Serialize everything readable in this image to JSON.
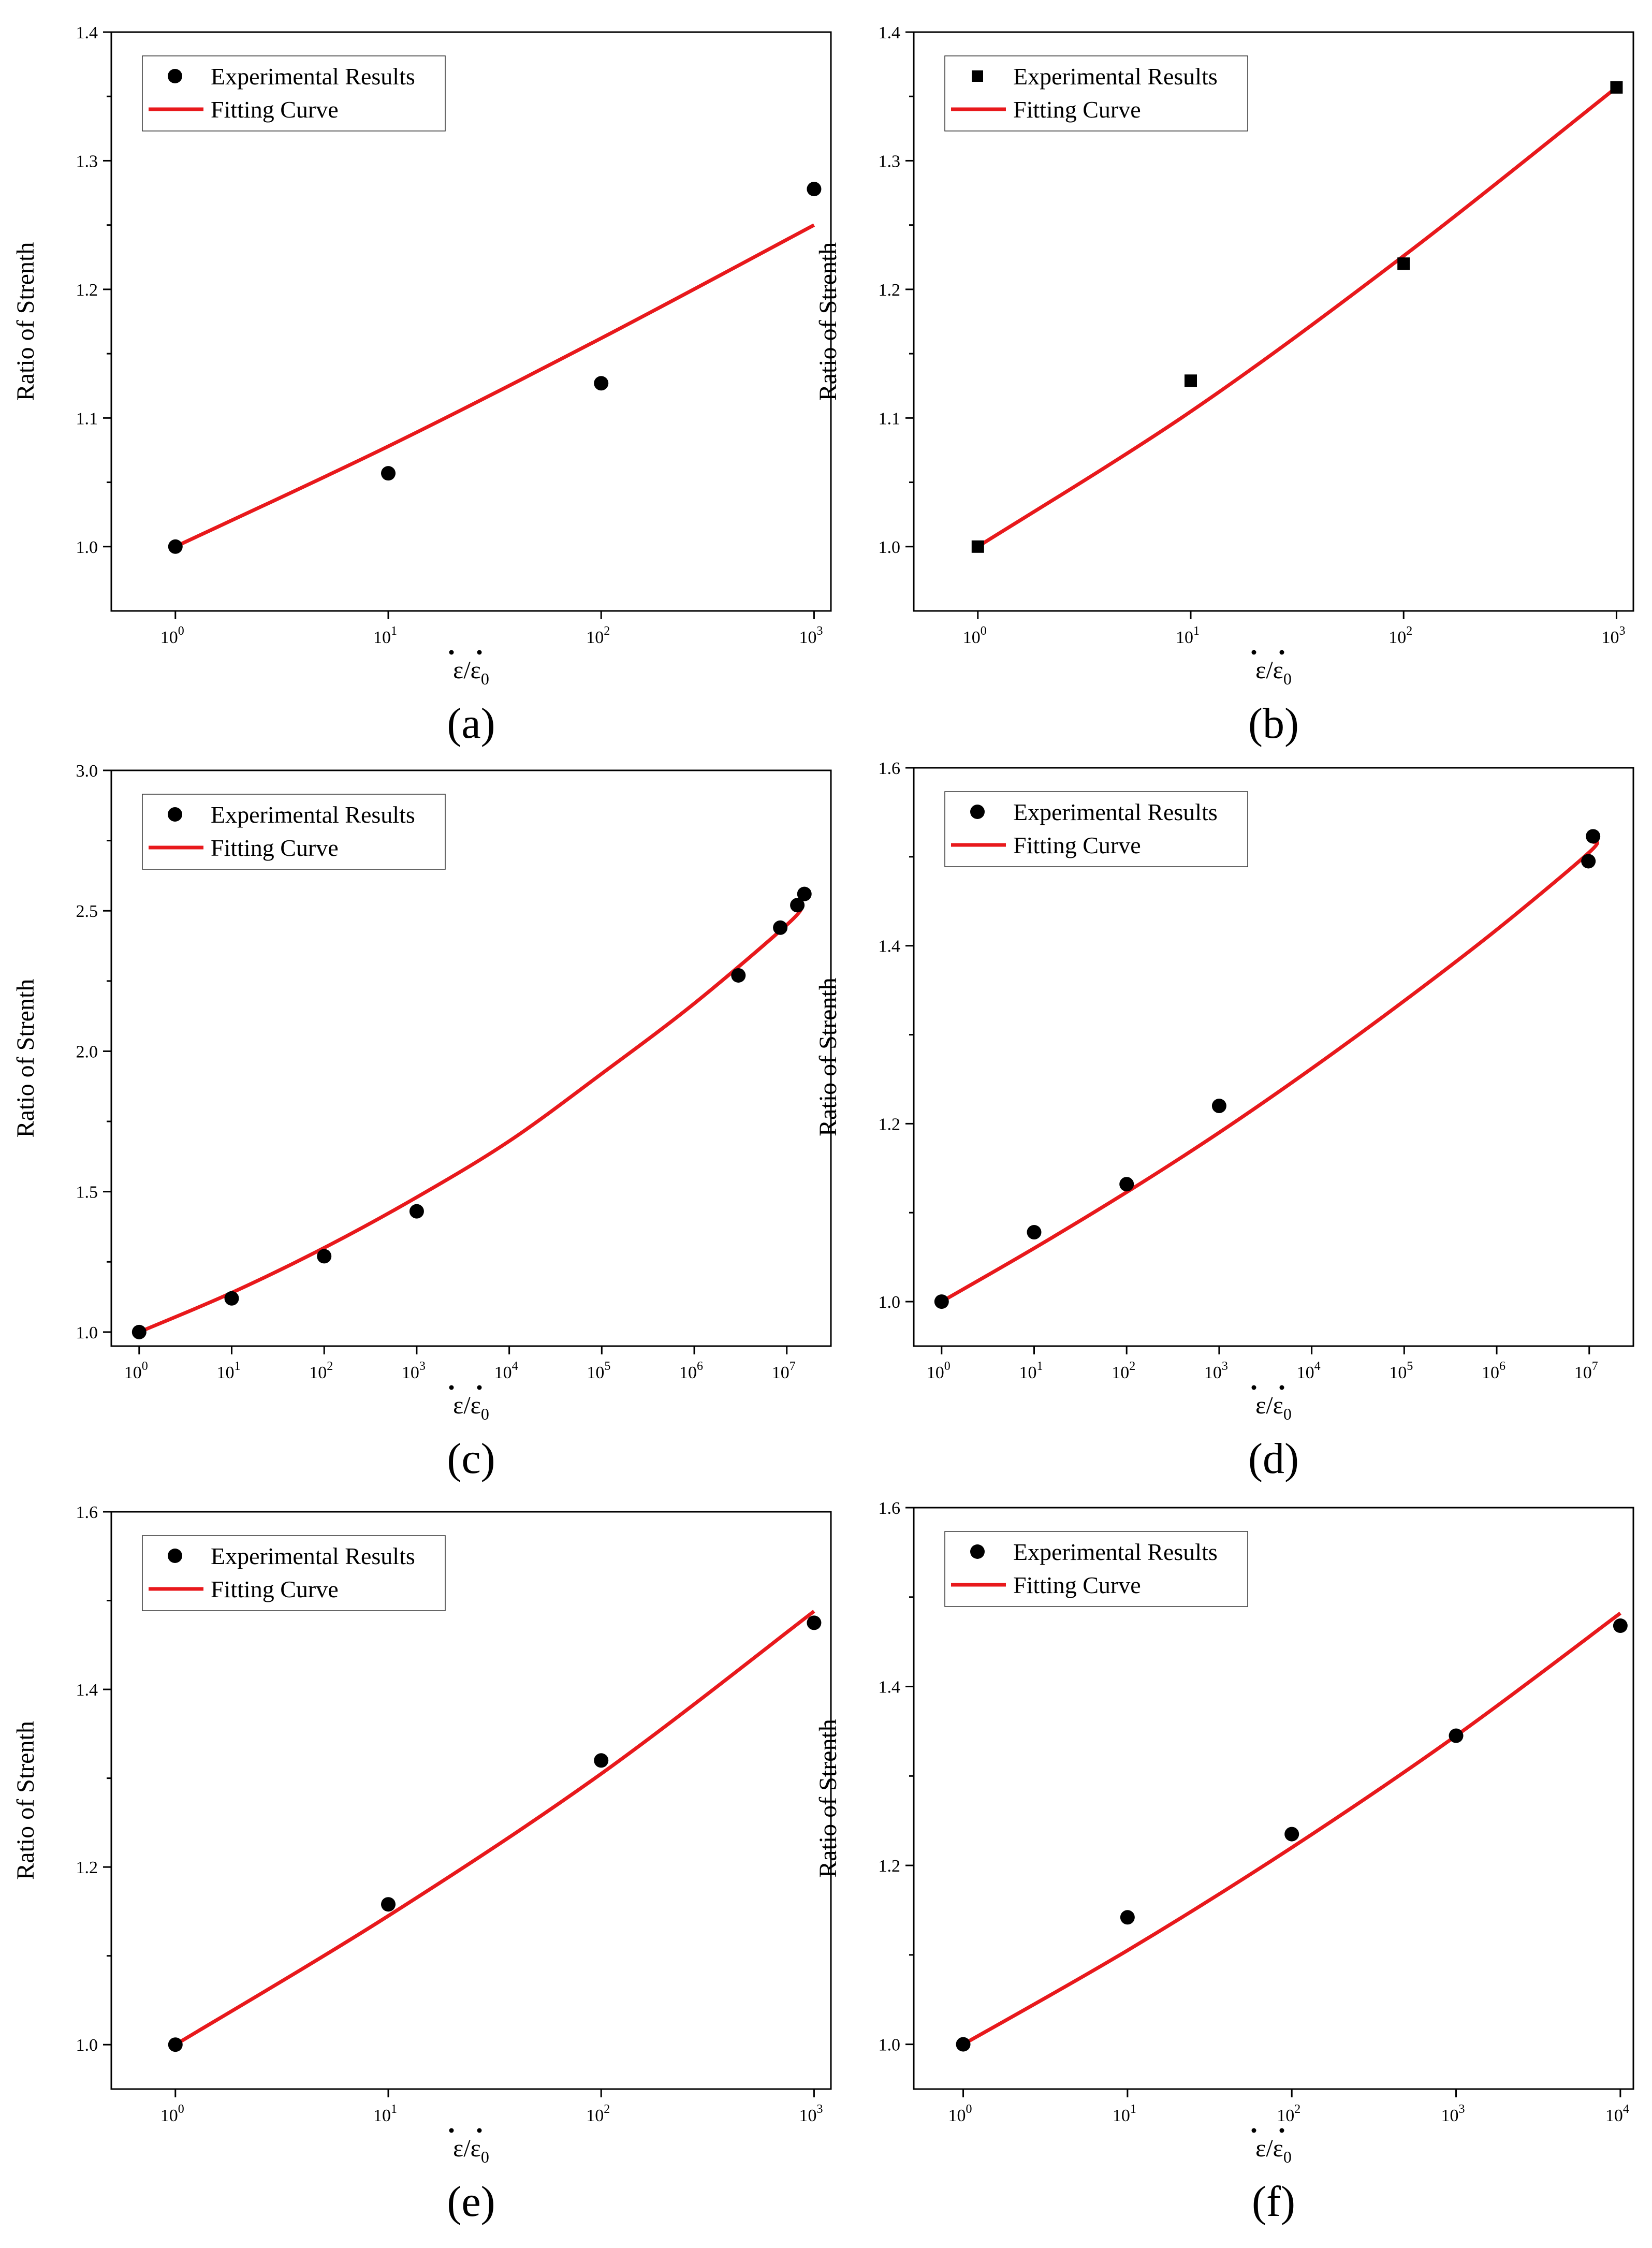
{
  "figure": {
    "legend_experimental": "Experimental Results",
    "legend_fitting": "Fitting Curve",
    "ylabel": "Ratio of Strenth",
    "xlabel_base": "ε",
    "xlabel_sep": "/",
    "xlabel_sub": "0",
    "colors": {
      "fit": "#e8191c",
      "marker": "#000000",
      "axis": "#000000"
    }
  },
  "chart_data": [
    {
      "type": "scatter",
      "panel_label": "(a)",
      "marker": "circle",
      "xscale": "log",
      "xlim": [
        0.5,
        1200
      ],
      "ylim": [
        0.95,
        1.4
      ],
      "xticks": [
        {
          "exp": 0,
          "base": "10",
          "sup": "0"
        },
        {
          "exp": 1,
          "base": "10",
          "sup": "1"
        },
        {
          "exp": 2,
          "base": "10",
          "sup": "2"
        },
        {
          "exp": 3,
          "base": "10",
          "sup": "3"
        }
      ],
      "yticks": [
        "1.0",
        "1.1",
        "1.2",
        "1.3",
        "1.4"
      ],
      "yminor": [
        1.05,
        1.15,
        1.25,
        1.35
      ],
      "series": [
        {
          "name": "Experimental Results",
          "x": [
            1,
            10,
            100,
            1000
          ],
          "y": [
            1.0,
            1.057,
            1.127,
            1.278
          ]
        },
        {
          "name": "Fitting Curve",
          "x": [
            1,
            10,
            100,
            1000
          ],
          "y": [
            1.0,
            1.078,
            1.162,
            1.25
          ]
        }
      ]
    },
    {
      "type": "scatter",
      "panel_label": "(b)",
      "marker": "square",
      "xscale": "log",
      "xlim": [
        0.5,
        1200
      ],
      "ylim": [
        0.95,
        1.4
      ],
      "xticks": [
        {
          "exp": 0,
          "base": "10",
          "sup": "0"
        },
        {
          "exp": 1,
          "base": "10",
          "sup": "1"
        },
        {
          "exp": 2,
          "base": "10",
          "sup": "2"
        },
        {
          "exp": 3,
          "base": "10",
          "sup": "3"
        }
      ],
      "yticks": [
        "1.0",
        "1.1",
        "1.2",
        "1.3",
        "1.4"
      ],
      "yminor": [
        1.05,
        1.15,
        1.25,
        1.35
      ],
      "series": [
        {
          "name": "Experimental Results",
          "x": [
            1,
            10,
            100,
            1000
          ],
          "y": [
            1.0,
            1.129,
            1.22,
            1.357
          ]
        },
        {
          "name": "Fitting Curve",
          "x": [
            1,
            10,
            100,
            1000
          ],
          "y": [
            1.0,
            1.105,
            1.226,
            1.357
          ]
        }
      ]
    },
    {
      "type": "scatter",
      "panel_label": "(c)",
      "marker": "circle",
      "xscale": "log",
      "xlim": [
        0.5,
        30000000
      ],
      "ylim": [
        0.95,
        3.0
      ],
      "xticks": [
        {
          "exp": 0,
          "base": "10",
          "sup": "0"
        },
        {
          "exp": 1,
          "base": "10",
          "sup": "1"
        },
        {
          "exp": 2,
          "base": "10",
          "sup": "2"
        },
        {
          "exp": 3,
          "base": "10",
          "sup": "3"
        },
        {
          "exp": 4,
          "base": "10",
          "sup": "4"
        },
        {
          "exp": 5,
          "base": "10",
          "sup": "5"
        },
        {
          "exp": 6,
          "base": "10",
          "sup": "6"
        },
        {
          "exp": 7,
          "base": "10",
          "sup": "7"
        }
      ],
      "yticks": [
        "1.0",
        "1.5",
        "2.0",
        "2.5",
        "3.0"
      ],
      "yminor": [
        1.25,
        1.75,
        2.25,
        2.75
      ],
      "series": [
        {
          "name": "Experimental Results",
          "x": [
            1,
            10,
            100,
            1000,
            3000000,
            8500000,
            13000000,
            15500000
          ],
          "y": [
            1.0,
            1.12,
            1.27,
            1.43,
            2.27,
            2.44,
            2.52,
            2.56
          ]
        },
        {
          "name": "Fitting Curve",
          "x": [
            1,
            10,
            100,
            1000,
            10000,
            100000,
            1000000,
            10000000,
            15000000
          ],
          "y": [
            1.0,
            1.14,
            1.3,
            1.48,
            1.68,
            1.92,
            2.17,
            2.45,
            2.52
          ]
        }
      ]
    },
    {
      "type": "scatter",
      "panel_label": "(d)",
      "marker": "circle",
      "xscale": "log",
      "xlim": [
        0.5,
        30000000
      ],
      "ylim": [
        0.95,
        1.6
      ],
      "xticks": [
        {
          "exp": 0,
          "base": "10",
          "sup": "0"
        },
        {
          "exp": 1,
          "base": "10",
          "sup": "1"
        },
        {
          "exp": 2,
          "base": "10",
          "sup": "2"
        },
        {
          "exp": 3,
          "base": "10",
          "sup": "3"
        },
        {
          "exp": 4,
          "base": "10",
          "sup": "4"
        },
        {
          "exp": 5,
          "base": "10",
          "sup": "5"
        },
        {
          "exp": 6,
          "base": "10",
          "sup": "6"
        },
        {
          "exp": 7,
          "base": "10",
          "sup": "7"
        }
      ],
      "yticks": [
        "1.0",
        "1.2",
        "1.4",
        "1.6"
      ],
      "yminor": [
        1.1,
        1.3,
        1.5
      ],
      "series": [
        {
          "name": "Experimental Results",
          "x": [
            1,
            10,
            100,
            1000,
            9800000,
            11000000
          ],
          "y": [
            1.0,
            1.078,
            1.132,
            1.22,
            1.495,
            1.523
          ]
        },
        {
          "name": "Fitting Curve",
          "x": [
            1,
            10,
            100,
            1000,
            10000,
            100000,
            1000000,
            10000000,
            11000000
          ],
          "y": [
            1.0,
            1.06,
            1.123,
            1.19,
            1.262,
            1.338,
            1.418,
            1.505,
            1.517
          ]
        }
      ]
    },
    {
      "type": "scatter",
      "panel_label": "(e)",
      "marker": "circle",
      "xscale": "log",
      "xlim": [
        0.5,
        1200
      ],
      "ylim": [
        0.95,
        1.6
      ],
      "xticks": [
        {
          "exp": 0,
          "base": "10",
          "sup": "0"
        },
        {
          "exp": 1,
          "base": "10",
          "sup": "1"
        },
        {
          "exp": 2,
          "base": "10",
          "sup": "2"
        },
        {
          "exp": 3,
          "base": "10",
          "sup": "3"
        }
      ],
      "yticks": [
        "1.0",
        "1.2",
        "1.4",
        "1.6"
      ],
      "yminor": [
        1.1,
        1.3,
        1.5
      ],
      "series": [
        {
          "name": "Experimental Results",
          "x": [
            1,
            10,
            100,
            1000
          ],
          "y": [
            1.0,
            1.158,
            1.32,
            1.475
          ]
        },
        {
          "name": "Fitting Curve",
          "x": [
            1,
            10,
            100,
            1000
          ],
          "y": [
            1.0,
            1.145,
            1.305,
            1.488
          ]
        }
      ]
    },
    {
      "type": "scatter",
      "panel_label": "(f)",
      "marker": "circle",
      "xscale": "log",
      "xlim": [
        0.5,
        12000
      ],
      "ylim": [
        0.95,
        1.6
      ],
      "xticks": [
        {
          "exp": 0,
          "base": "10",
          "sup": "0"
        },
        {
          "exp": 1,
          "base": "10",
          "sup": "1"
        },
        {
          "exp": 2,
          "base": "10",
          "sup": "2"
        },
        {
          "exp": 3,
          "base": "10",
          "sup": "3"
        },
        {
          "exp": 4,
          "base": "10",
          "sup": "4"
        }
      ],
      "yticks": [
        "1.0",
        "1.2",
        "1.4",
        "1.6"
      ],
      "yminor": [
        1.1,
        1.3,
        1.5
      ],
      "series": [
        {
          "name": "Experimental Results",
          "x": [
            1,
            10,
            100,
            1000,
            10000
          ],
          "y": [
            1.0,
            1.142,
            1.235,
            1.345,
            1.468
          ]
        },
        {
          "name": "Fitting Curve",
          "x": [
            1,
            10,
            100,
            1000,
            10000
          ],
          "y": [
            1.0,
            1.105,
            1.22,
            1.345,
            1.482
          ]
        }
      ]
    }
  ]
}
